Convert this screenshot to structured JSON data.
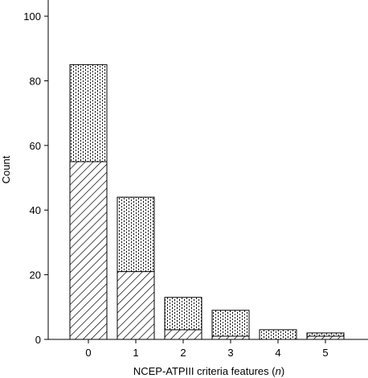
{
  "chart_data": {
    "type": "bar",
    "stacked": true,
    "categories": [
      "0",
      "1",
      "2",
      "3",
      "4",
      "5"
    ],
    "series": [
      {
        "pattern": "diagonal-hatch",
        "values": [
          55,
          21,
          3,
          1,
          0,
          1
        ]
      },
      {
        "pattern": "dotted",
        "values": [
          30,
          23,
          10,
          8,
          3,
          1
        ]
      }
    ],
    "xlabel_main": "NCEP-ATPIII criteria features (",
    "xlabel_var": "n",
    "xlabel_end": ")",
    "ylabel": "Count",
    "ylim": [
      0,
      105
    ],
    "yticks": [
      0,
      20,
      40,
      60,
      80,
      100
    ],
    "grid": false,
    "legend": "none"
  }
}
